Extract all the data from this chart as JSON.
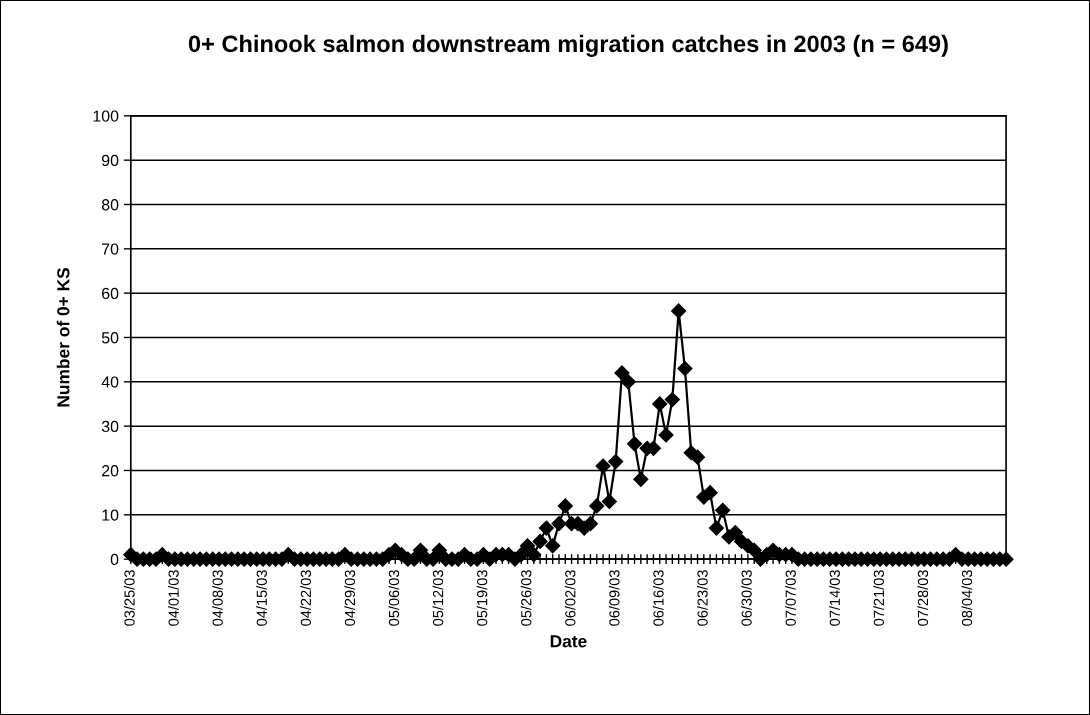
{
  "chart_data": {
    "type": "line",
    "title": "0+ Chinook salmon downstream migration catches in 2003 (n = 649)",
    "xlabel": "Date",
    "ylabel": "Number of 0+ KS",
    "categories": [
      "03/25/03",
      null,
      null,
      null,
      null,
      null,
      null,
      "04/01/03",
      null,
      null,
      null,
      null,
      null,
      null,
      "04/08/03",
      null,
      null,
      null,
      null,
      null,
      null,
      "04/15/03",
      null,
      null,
      null,
      null,
      null,
      null,
      "04/22/03",
      null,
      null,
      null,
      null,
      null,
      null,
      "04/29/03",
      null,
      null,
      null,
      null,
      null,
      null,
      "05/06/03",
      null,
      null,
      null,
      null,
      null,
      null,
      "05/12/03",
      null,
      null,
      null,
      null,
      null,
      null,
      "05/19/03",
      null,
      null,
      null,
      null,
      null,
      null,
      "05/26/03",
      null,
      null,
      null,
      null,
      null,
      null,
      "06/02/03",
      null,
      null,
      null,
      null,
      null,
      null,
      "06/09/03",
      null,
      null,
      null,
      null,
      null,
      null,
      "06/16/03",
      null,
      null,
      null,
      null,
      null,
      null,
      "06/23/03",
      null,
      null,
      null,
      null,
      null,
      null,
      "06/30/03",
      null,
      null,
      null,
      null,
      null,
      null,
      "07/07/03",
      null,
      null,
      null,
      null,
      null,
      null,
      "07/14/03",
      null,
      null,
      null,
      null,
      null,
      null,
      "07/21/03",
      null,
      null,
      null,
      null,
      null,
      null,
      "07/28/03",
      null,
      null,
      null,
      null,
      null,
      null,
      "08/04/03",
      null,
      null,
      null,
      null,
      null,
      null
    ],
    "values": [
      1,
      0,
      0,
      0,
      0,
      1,
      0,
      0,
      0,
      0,
      0,
      0,
      0,
      0,
      0,
      0,
      0,
      0,
      0,
      0,
      0,
      0,
      0,
      0,
      0,
      1,
      0,
      0,
      0,
      0,
      0,
      0,
      0,
      0,
      1,
      0,
      0,
      0,
      0,
      0,
      0,
      1,
      2,
      1,
      0,
      0,
      2,
      0,
      0,
      2,
      0,
      0,
      0,
      1,
      0,
      0,
      1,
      0,
      1,
      1,
      1,
      0,
      1,
      3,
      1,
      4,
      7,
      3,
      8,
      12,
      8,
      8,
      7,
      8,
      12,
      21,
      13,
      22,
      42,
      40,
      26,
      18,
      25,
      25,
      35,
      28,
      36,
      56,
      43,
      24,
      23,
      14,
      15,
      7,
      11,
      5,
      6,
      4,
      3,
      2,
      0,
      1,
      2,
      1,
      1,
      1,
      0,
      0,
      0,
      0,
      0,
      0,
      0,
      0,
      0,
      0,
      0,
      0,
      0,
      0,
      0,
      0,
      0,
      0,
      0,
      0,
      0,
      0,
      0,
      0,
      0,
      1,
      0,
      0,
      0,
      0,
      0,
      0,
      0,
      0
    ],
    "color": "#000000",
    "marker": "diamond",
    "line_style": "solid",
    "ylim": [
      0,
      100
    ],
    "yticks": [
      0,
      10,
      20,
      30,
      40,
      50,
      60,
      70,
      80,
      90,
      100
    ],
    "grid": "y"
  }
}
